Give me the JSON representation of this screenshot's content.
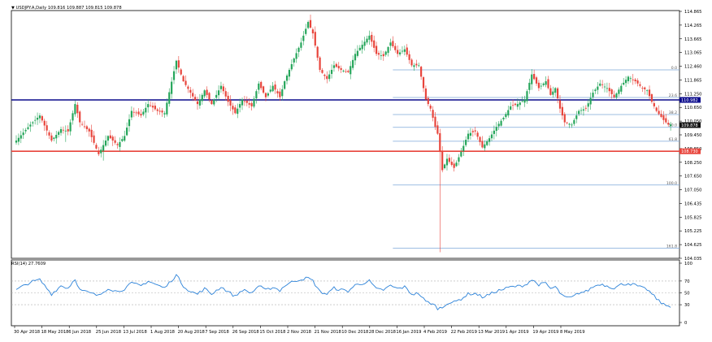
{
  "header": {
    "symbol_line": "USDJPY.A,Daily  109.816 109.887 109.815 109.878",
    "collapse_icon": "triangle-down-icon"
  },
  "rsi": {
    "label": "RSI(14) 27.7609",
    "ticks": [
      "100",
      "70",
      "50",
      "30",
      "0"
    ]
  },
  "colors": {
    "bull": "#26a65b",
    "bear": "#e8453c",
    "rsi_line": "#2b82d9",
    "blue_hline": "#0a0a8c",
    "red_hline": "#e8453c",
    "fib_line": "#7da7d9",
    "frame": "#000000"
  },
  "chart_data": {
    "type": "candlestick",
    "price_ticks": [
      "114.865",
      "114.265",
      "113.665",
      "113.065",
      "112.460",
      "111.865",
      "111.250",
      "110.650",
      "110.050",
      "109.450",
      "108.850",
      "108.250",
      "107.650",
      "107.050",
      "106.435",
      "105.825",
      "105.225",
      "104.625",
      "104.035"
    ],
    "ylim": [
      104.035,
      114.865
    ],
    "x_tick_labels": [
      "30 Apr 2018",
      "18 May 2018",
      "6 Jun 2018",
      "25 Jun 2018",
      "13 Jul 2018",
      "1 Aug 2018",
      "20 Aug 2018",
      "7 Sep 2018",
      "26 Sep 2018",
      "15 Oct 2018",
      "2 Nov 2018",
      "21 Nov 2018",
      "10 Dec 2018",
      "28 Dec 2018",
      "16 Jan 2019",
      "4 Feb 2019",
      "22 Feb 2019",
      "13 Mar 2019",
      "1 Apr 2019",
      "19 Apr 2019",
      "8 May 2019"
    ],
    "horizontal_lines": [
      {
        "label": "110.982",
        "value": 110.982,
        "color": "#0a0a8c"
      },
      {
        "label": "108.730",
        "value": 108.73,
        "color": "#e8453c"
      }
    ],
    "last_price_label": "109.878",
    "last_price": 109.878,
    "fibonacci": [
      {
        "label": "0.0",
        "value": 112.3
      },
      {
        "label": "23.6",
        "value": 111.09
      },
      {
        "label": "38.2",
        "value": 110.34
      },
      {
        "label": "50.0",
        "value": 109.78
      },
      {
        "label": "61.8",
        "value": 109.17
      },
      {
        "label": "100.0",
        "value": 107.25
      },
      {
        "label": "161.8",
        "value": 104.48
      }
    ],
    "rsi_levels": [
      70,
      50,
      30
    ],
    "rsi_range": [
      0,
      100
    ],
    "waypoints": [
      [
        0,
        109.2
      ],
      [
        6,
        109.9
      ],
      [
        10,
        110.3
      ],
      [
        15,
        109.2
      ],
      [
        19,
        109.7
      ],
      [
        22,
        109.6
      ],
      [
        25,
        110.8
      ],
      [
        27,
        110.0
      ],
      [
        31,
        109.6
      ],
      [
        35,
        108.6
      ],
      [
        39,
        109.4
      ],
      [
        43,
        109.0
      ],
      [
        46,
        109.4
      ],
      [
        49,
        110.5
      ],
      [
        53,
        110.3
      ],
      [
        56,
        110.8
      ],
      [
        60,
        110.5
      ],
      [
        63,
        110.4
      ],
      [
        68,
        112.7
      ],
      [
        71,
        111.8
      ],
      [
        74,
        111.3
      ],
      [
        77,
        110.8
      ],
      [
        80,
        111.4
      ],
      [
        83,
        110.8
      ],
      [
        87,
        111.6
      ],
      [
        90,
        110.9
      ],
      [
        93,
        110.4
      ],
      [
        96,
        111.0
      ],
      [
        100,
        110.7
      ],
      [
        103,
        111.7
      ],
      [
        106,
        111.1
      ],
      [
        109,
        111.6
      ],
      [
        112,
        111.1
      ],
      [
        114,
        111.8
      ],
      [
        118,
        112.8
      ],
      [
        121,
        113.5
      ],
      [
        124,
        114.4
      ],
      [
        126,
        113.9
      ],
      [
        129,
        112.3
      ],
      [
        132,
        111.9
      ],
      [
        135,
        112.5
      ],
      [
        138,
        112.3
      ],
      [
        141,
        112.2
      ],
      [
        144,
        113.0
      ],
      [
        147,
        113.4
      ],
      [
        150,
        113.8
      ],
      [
        153,
        113.0
      ],
      [
        156,
        112.9
      ],
      [
        159,
        113.5
      ],
      [
        162,
        113.0
      ],
      [
        165,
        113.2
      ],
      [
        168,
        112.5
      ],
      [
        171,
        112.5
      ],
      [
        174,
        111.0
      ],
      [
        176,
        110.6
      ],
      [
        178,
        109.8
      ],
      [
        179,
        109.5
      ],
      [
        181,
        107.9
      ],
      [
        183,
        108.4
      ],
      [
        186,
        108.0
      ],
      [
        189,
        108.7
      ],
      [
        192,
        109.5
      ],
      [
        195,
        109.6
      ],
      [
        198,
        108.9
      ],
      [
        201,
        109.3
      ],
      [
        204,
        109.8
      ],
      [
        207,
        110.2
      ],
      [
        210,
        110.7
      ],
      [
        213,
        110.8
      ],
      [
        216,
        111.0
      ],
      [
        219,
        112.1
      ],
      [
        222,
        111.5
      ],
      [
        225,
        111.8
      ],
      [
        227,
        111.2
      ],
      [
        229,
        111.5
      ],
      [
        231,
        110.6
      ],
      [
        233,
        110.0
      ],
      [
        236,
        109.9
      ],
      [
        239,
        110.5
      ],
      [
        242,
        110.6
      ],
      [
        245,
        111.3
      ],
      [
        248,
        111.7
      ],
      [
        251,
        111.5
      ],
      [
        254,
        111.1
      ],
      [
        257,
        111.6
      ],
      [
        260,
        112.0
      ],
      [
        263,
        111.8
      ],
      [
        266,
        111.5
      ],
      [
        268,
        111.4
      ],
      [
        270,
        110.9
      ],
      [
        272,
        110.5
      ],
      [
        275,
        110.1
      ],
      [
        277,
        109.9
      ]
    ],
    "rsi_waypoints": [
      [
        0,
        55
      ],
      [
        6,
        68
      ],
      [
        10,
        72
      ],
      [
        15,
        48
      ],
      [
        19,
        62
      ],
      [
        22,
        58
      ],
      [
        25,
        74
      ],
      [
        27,
        55
      ],
      [
        31,
        50
      ],
      [
        35,
        45
      ],
      [
        39,
        58
      ],
      [
        43,
        52
      ],
      [
        46,
        57
      ],
      [
        49,
        66
      ],
      [
        53,
        62
      ],
      [
        56,
        70
      ],
      [
        60,
        63
      ],
      [
        63,
        58
      ],
      [
        68,
        80
      ],
      [
        71,
        62
      ],
      [
        74,
        52
      ],
      [
        77,
        48
      ],
      [
        80,
        57
      ],
      [
        83,
        48
      ],
      [
        87,
        60
      ],
      [
        90,
        52
      ],
      [
        93,
        44
      ],
      [
        96,
        55
      ],
      [
        100,
        50
      ],
      [
        103,
        62
      ],
      [
        106,
        54
      ],
      [
        109,
        60
      ],
      [
        112,
        54
      ],
      [
        114,
        62
      ],
      [
        118,
        70
      ],
      [
        121,
        73
      ],
      [
        124,
        75
      ],
      [
        126,
        70
      ],
      [
        129,
        52
      ],
      [
        132,
        48
      ],
      [
        135,
        58
      ],
      [
        138,
        55
      ],
      [
        141,
        53
      ],
      [
        144,
        63
      ],
      [
        147,
        66
      ],
      [
        150,
        70
      ],
      [
        153,
        56
      ],
      [
        156,
        55
      ],
      [
        159,
        62
      ],
      [
        162,
        57
      ],
      [
        165,
        60
      ],
      [
        168,
        48
      ],
      [
        171,
        49
      ],
      [
        174,
        35
      ],
      [
        176,
        33
      ],
      [
        178,
        28
      ],
      [
        179,
        24
      ],
      [
        181,
        25
      ],
      [
        183,
        33
      ],
      [
        186,
        34
      ],
      [
        189,
        40
      ],
      [
        192,
        48
      ],
      [
        195,
        49
      ],
      [
        198,
        43
      ],
      [
        201,
        47
      ],
      [
        204,
        53
      ],
      [
        207,
        56
      ],
      [
        210,
        60
      ],
      [
        213,
        61
      ],
      [
        216,
        63
      ],
      [
        219,
        72
      ],
      [
        222,
        64
      ],
      [
        225,
        66
      ],
      [
        227,
        57
      ],
      [
        229,
        60
      ],
      [
        231,
        50
      ],
      [
        233,
        42
      ],
      [
        236,
        42
      ],
      [
        239,
        50
      ],
      [
        242,
        52
      ],
      [
        245,
        60
      ],
      [
        248,
        65
      ],
      [
        251,
        62
      ],
      [
        254,
        58
      ],
      [
        257,
        64
      ],
      [
        260,
        66
      ],
      [
        263,
        63
      ],
      [
        266,
        58
      ],
      [
        268,
        56
      ],
      [
        270,
        48
      ],
      [
        272,
        40
      ],
      [
        275,
        30
      ],
      [
        277,
        27.8
      ]
    ]
  }
}
